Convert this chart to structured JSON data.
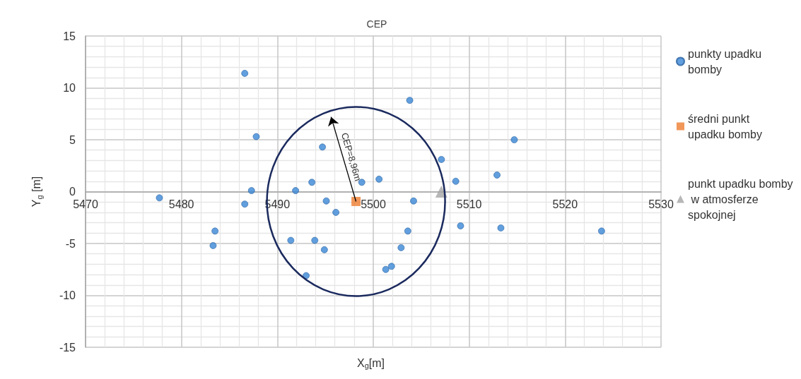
{
  "chart_data": {
    "type": "scatter",
    "title": "CEP",
    "xlabel": "X$_{g}$[m]",
    "ylabel": "Y$_{g}$ [m]",
    "xlim": [
      5470,
      5530
    ],
    "xticks": [
      5470,
      5480,
      5490,
      5500,
      5510,
      5520,
      5530
    ],
    "ylim": [
      -15,
      15
    ],
    "yticks": [
      -15,
      -10,
      -5,
      0,
      5,
      10,
      15
    ],
    "grid": true,
    "legend": "right",
    "annotations": [
      {
        "text": "CEP=8,96m",
        "x": 5498.2,
        "y": -0.95
      }
    ],
    "series": [
      {
        "name": "punkty upadku bomby",
        "color": "#3a87d6",
        "marker": "circle",
        "x": [
          5477.7,
          5486.6,
          5487.8,
          5487.3,
          5486.6,
          5483.5,
          5483.3,
          5491.9,
          5493.6,
          5494.7,
          5495.1,
          5496.1,
          5498.8,
          5491.4,
          5493.9,
          5494.9,
          5493.0,
          5500.6,
          5503.8,
          5507.1,
          5508.6,
          5504.2,
          5503.6,
          5502.9,
          5501.9,
          5501.3,
          5509.1,
          5512.9,
          5513.3,
          5514.7,
          5523.8
        ],
        "values": [
          -0.6,
          11.4,
          5.3,
          0.1,
          -1.2,
          -3.8,
          -5.2,
          0.1,
          0.9,
          4.3,
          -0.9,
          -2.0,
          0.9,
          -4.7,
          -4.7,
          -5.6,
          -8.1,
          1.2,
          8.8,
          3.1,
          1.0,
          -0.9,
          -3.8,
          -5.4,
          -7.2,
          -7.5,
          -3.3,
          1.6,
          -3.5,
          5.0,
          -3.8
        ]
      },
      {
        "name": "średni punkt upadku bomby",
        "color": "#ed7d31",
        "marker": "square",
        "x": [
          5498.2
        ],
        "values": [
          -0.95
        ]
      },
      {
        "name": "punkt upadku bomby w atmosferze spokojnej",
        "color": "#a5a5a5",
        "marker": "triangle",
        "x": [
          5507.1
        ],
        "values": [
          0
        ]
      }
    ]
  }
}
